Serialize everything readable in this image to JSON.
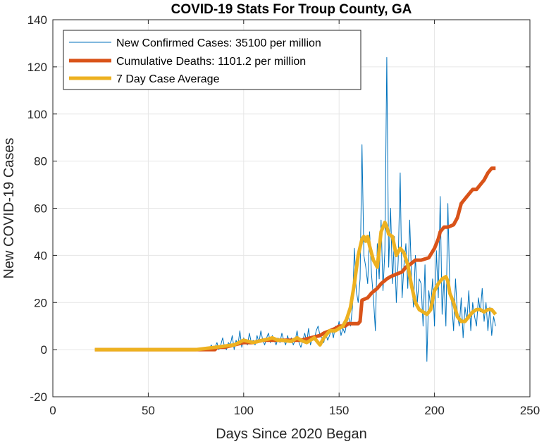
{
  "chart_data": {
    "type": "line",
    "title": "COVID-19 Stats For Troup County, GA",
    "xlabel": "Days Since 2020 Began",
    "ylabel": "New COVID-19 Cases",
    "xlim": [
      0,
      250
    ],
    "ylim": [
      -20,
      140
    ],
    "xticks": [
      0,
      50,
      100,
      150,
      200,
      250
    ],
    "yticks": [
      -20,
      0,
      20,
      40,
      60,
      80,
      100,
      120,
      140
    ],
    "grid": true,
    "legend_position": "top-left",
    "series": [
      {
        "name": "New Confirmed Cases: 35100 per million",
        "color": "#0072BD",
        "line_width": "thin",
        "x": [
          22,
          40,
          60,
          75,
          80,
          81,
          82,
          83,
          84,
          85,
          86,
          87,
          88,
          89,
          90,
          91,
          92,
          93,
          94,
          95,
          96,
          97,
          98,
          99,
          100,
          101,
          102,
          103,
          104,
          105,
          106,
          107,
          108,
          109,
          110,
          111,
          112,
          113,
          114,
          115,
          116,
          117,
          118,
          119,
          120,
          121,
          122,
          123,
          124,
          125,
          126,
          127,
          128,
          129,
          130,
          131,
          132,
          133,
          134,
          135,
          136,
          137,
          138,
          139,
          140,
          141,
          142,
          143,
          144,
          145,
          146,
          147,
          148,
          149,
          150,
          151,
          152,
          153,
          154,
          155,
          156,
          157,
          158,
          159,
          160,
          161,
          162,
          163,
          164,
          165,
          166,
          167,
          168,
          169,
          170,
          171,
          172,
          173,
          174,
          175,
          176,
          177,
          178,
          179,
          180,
          181,
          182,
          183,
          184,
          185,
          186,
          187,
          188,
          189,
          190,
          191,
          192,
          193,
          194,
          195,
          196,
          197,
          198,
          199,
          200,
          201,
          202,
          203,
          204,
          205,
          206,
          207,
          208,
          209,
          210,
          211,
          212,
          213,
          214,
          215,
          216,
          217,
          218,
          219,
          220,
          221,
          222,
          223,
          224,
          225,
          226,
          227,
          228,
          229,
          230,
          231,
          232
        ],
        "y": [
          0,
          0,
          0,
          0,
          0,
          1,
          0,
          2,
          0,
          1,
          3,
          0,
          2,
          5,
          1,
          0,
          3,
          2,
          6,
          0,
          4,
          2,
          8,
          1,
          5,
          3,
          2,
          7,
          3,
          4,
          2,
          6,
          3,
          8,
          4,
          2,
          5,
          7,
          3,
          6,
          4,
          2,
          5,
          3,
          7,
          4,
          2,
          6,
          3,
          5,
          2,
          4,
          8,
          3,
          1,
          4,
          7,
          3,
          9,
          2,
          5,
          4,
          8,
          10,
          6,
          5,
          3,
          7,
          4,
          6,
          9,
          5,
          10,
          8,
          12,
          6,
          9,
          7,
          11,
          14,
          10,
          18,
          43,
          25,
          20,
          30,
          87,
          40,
          35,
          28,
          50,
          32,
          22,
          8,
          45,
          30,
          55,
          25,
          42,
          124,
          35,
          60,
          28,
          48,
          20,
          38,
          75,
          22,
          36,
          45,
          26,
          55,
          30,
          18,
          40,
          20,
          30,
          28,
          10,
          36,
          -5,
          25,
          18,
          30,
          10,
          42,
          22,
          65,
          15,
          30,
          10,
          62,
          25,
          20,
          8,
          30,
          15,
          10,
          22,
          5,
          18,
          12,
          25,
          8,
          20,
          14,
          10,
          22,
          16,
          26,
          12,
          20,
          8,
          18,
          6,
          14,
          10
        ]
      },
      {
        "name": "Cumulative Deaths: 1101.2 per million",
        "color": "#D95319",
        "line_width": "thick",
        "x": [
          22,
          75,
          80,
          85,
          86,
          90,
          95,
          100,
          105,
          110,
          115,
          120,
          125,
          130,
          135,
          140,
          142,
          145,
          148,
          150,
          153,
          155,
          160,
          161,
          162,
          165,
          167,
          170,
          172,
          175,
          177,
          180,
          183,
          185,
          187,
          190,
          193,
          197,
          200,
          202,
          203,
          205,
          207,
          210,
          212,
          214,
          216,
          218,
          220,
          222,
          224,
          226,
          228,
          230,
          232
        ],
        "y": [
          0,
          0,
          0,
          0,
          1,
          1,
          2,
          3,
          3,
          4,
          4,
          4,
          4,
          4,
          5,
          6,
          7,
          8,
          9,
          10,
          10,
          11,
          11,
          12,
          21,
          22,
          24,
          26,
          28,
          30,
          31,
          32,
          33,
          35,
          36,
          38,
          38,
          39,
          43,
          47,
          50,
          52,
          52,
          53,
          56,
          62,
          64,
          66,
          68,
          68,
          70,
          72,
          75,
          77,
          77
        ]
      },
      {
        "name": "7 Day Case Average",
        "color": "#EDB120",
        "line_width": "thick",
        "x": [
          22,
          40,
          60,
          75,
          80,
          85,
          90,
          95,
          100,
          105,
          110,
          113,
          115,
          118,
          120,
          125,
          128,
          130,
          133,
          135,
          137,
          139,
          140,
          142,
          145,
          148,
          150,
          152,
          154,
          156,
          158,
          160,
          162,
          163,
          164,
          165,
          166,
          168,
          170,
          172,
          174,
          175,
          176,
          178,
          180,
          182,
          184,
          186,
          188,
          190,
          192,
          194,
          196,
          198,
          200,
          202,
          204,
          206,
          207,
          208,
          210,
          212,
          214,
          216,
          218,
          220,
          222,
          224,
          226,
          228,
          230,
          232
        ],
        "y": [
          0,
          0,
          0,
          0,
          0.5,
          1,
          1.5,
          2,
          4,
          3,
          4,
          4.5,
          5,
          4,
          4,
          3.5,
          5,
          4,
          3,
          4,
          5,
          3,
          2,
          5,
          8,
          8,
          9,
          10,
          13,
          18,
          28,
          40,
          47,
          48,
          46,
          48,
          44,
          38,
          35,
          50,
          54,
          52,
          49,
          48,
          40,
          43,
          41,
          36,
          27,
          20,
          17,
          16,
          15,
          17,
          25,
          28,
          30,
          31,
          29,
          24,
          20,
          14,
          12,
          12,
          14,
          16,
          17,
          17,
          16,
          17,
          17,
          15
        ]
      }
    ]
  }
}
